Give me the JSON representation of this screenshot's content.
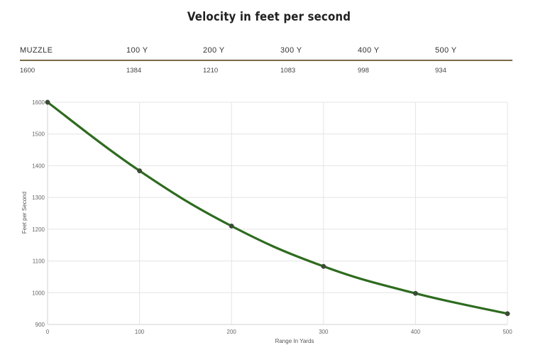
{
  "page_title": "Velocity in feet per second",
  "table": {
    "headers": [
      "MUZZLE",
      "100 Y",
      "200 Y",
      "300 Y",
      "400 Y",
      "500 Y"
    ],
    "values": [
      "1600",
      "1384",
      "1210",
      "1083",
      "998",
      "934"
    ]
  },
  "chart_data": {
    "type": "line",
    "title": "Velocity in feet per second",
    "xlabel": "Range In Yards",
    "ylabel": "Feet per Second",
    "x": [
      0,
      100,
      200,
      300,
      400,
      500
    ],
    "x_ticks": [
      "0",
      "100",
      "200",
      "300",
      "400",
      "500"
    ],
    "y_ticks": [
      "900",
      "1000",
      "1100",
      "1200",
      "1300",
      "1400",
      "1500",
      "1600"
    ],
    "xlim": [
      0,
      500
    ],
    "ylim": [
      900,
      1600
    ],
    "grid": true,
    "legend": "none",
    "series": [
      {
        "name": "Velocity",
        "color": "#2e6b1f",
        "values": [
          1600,
          1384,
          1210,
          1083,
          998,
          934
        ]
      }
    ]
  }
}
